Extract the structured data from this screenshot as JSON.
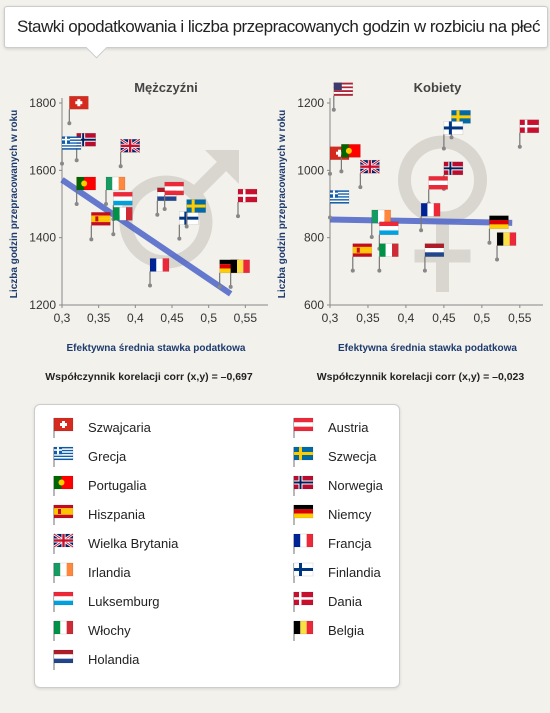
{
  "title": "Stawki opodatkowania i liczba przepracowanych godzin w rozbiciu na płeć",
  "colors": {
    "trend_line": "#4a63c8",
    "pin": "#777777",
    "gender_symbol": "#d9d6d0"
  },
  "chart_data": [
    {
      "type": "scatter",
      "title": "Mężczyźni",
      "xlabel": "Efektywna średnia stawka podatkowa",
      "ylabel": "Liczba godzin przepracowanych w roku",
      "xlim": [
        0.3,
        0.57
      ],
      "ylim": [
        1200,
        1800
      ],
      "xticks": [
        "0,3",
        "0,35",
        "0,4",
        "0,45",
        "0,5",
        "0,55"
      ],
      "yticks": [
        "1200",
        "1400",
        "1600",
        "1800"
      ],
      "correlation_text": "Współczynnik korelacji corr (x,y) = –0,697",
      "trend": [
        [
          0.3,
          1572
        ],
        [
          0.53,
          1233
        ]
      ],
      "points": [
        {
          "country": "Szwajcaria",
          "flag": "ch",
          "x": 0.31,
          "y": 1740
        },
        {
          "country": "Wielka Brytania",
          "flag": "gb",
          "x": 0.38,
          "y": 1612
        },
        {
          "country": "Norwegia",
          "flag": "no",
          "x": 0.32,
          "y": 1630
        },
        {
          "country": "Grecja",
          "flag": "gr",
          "x": 0.3,
          "y": 1620
        },
        {
          "country": "Portugalia",
          "flag": "pt",
          "x": 0.32,
          "y": 1500
        },
        {
          "country": "Irlandia",
          "flag": "ie",
          "x": 0.36,
          "y": 1500
        },
        {
          "country": "Hiszpania",
          "flag": "es",
          "x": 0.34,
          "y": 1395
        },
        {
          "country": "Luksemburg",
          "flag": "lu",
          "x": 0.37,
          "y": 1455
        },
        {
          "country": "Włochy",
          "flag": "it",
          "x": 0.37,
          "y": 1410
        },
        {
          "country": "Holandia",
          "flag": "nl",
          "x": 0.43,
          "y": 1468
        },
        {
          "country": "Austria",
          "flag": "at",
          "x": 0.44,
          "y": 1485
        },
        {
          "country": "Francja",
          "flag": "fr",
          "x": 0.42,
          "y": 1258
        },
        {
          "country": "Finlandia",
          "flag": "fi",
          "x": 0.46,
          "y": 1397
        },
        {
          "country": "Szwecja",
          "flag": "se",
          "x": 0.47,
          "y": 1433
        },
        {
          "country": "Dania",
          "flag": "dk",
          "x": 0.54,
          "y": 1464
        },
        {
          "country": "Niemcy",
          "flag": "de",
          "x": 0.515,
          "y": 1254
        },
        {
          "country": "Belgia",
          "flag": "be",
          "x": 0.53,
          "y": 1254
        }
      ]
    },
    {
      "type": "scatter",
      "title": "Kobiety",
      "xlabel": "Efektywna średnia stawka podatkowa",
      "ylabel": "Liczba godzin przepracowanych w roku",
      "xlim": [
        0.3,
        0.57
      ],
      "ylim": [
        600,
        1200
      ],
      "xticks": [
        "0,3",
        "0,35",
        "0,4",
        "0,45",
        "0,5",
        "0,55"
      ],
      "yticks": [
        "600",
        "800",
        "1000",
        "1200"
      ],
      "correlation_text": "Współczynnik korelacji corr (x,y) = –0,023",
      "trend": [
        [
          0.3,
          854
        ],
        [
          0.54,
          844
        ]
      ],
      "points": [
        {
          "country": "USA",
          "flag": "us",
          "x": 0.305,
          "y": 1180
        },
        {
          "country": "Szwecja",
          "flag": "se",
          "x": 0.46,
          "y": 1098
        },
        {
          "country": "Finlandia",
          "flag": "fi",
          "x": 0.45,
          "y": 1065
        },
        {
          "country": "Dania",
          "flag": "dk",
          "x": 0.55,
          "y": 1070
        },
        {
          "country": "Szwajcaria",
          "flag": "ch",
          "x": 0.3,
          "y": 990
        },
        {
          "country": "Portugalia",
          "flag": "pt",
          "x": 0.315,
          "y": 997
        },
        {
          "country": "Wielka Brytania",
          "flag": "gb",
          "x": 0.34,
          "y": 950
        },
        {
          "country": "Norwegia",
          "flag": "no",
          "x": 0.45,
          "y": 945
        },
        {
          "country": "Austria",
          "flag": "at",
          "x": 0.43,
          "y": 902
        },
        {
          "country": "Grecja",
          "flag": "gr",
          "x": 0.3,
          "y": 860
        },
        {
          "country": "Irlandia",
          "flag": "ie",
          "x": 0.355,
          "y": 802
        },
        {
          "country": "Francja",
          "flag": "fr",
          "x": 0.42,
          "y": 822
        },
        {
          "country": "Luksemburg",
          "flag": "lu",
          "x": 0.365,
          "y": 767
        },
        {
          "country": "Hiszpania",
          "flag": "es",
          "x": 0.33,
          "y": 702
        },
        {
          "country": "Włochy",
          "flag": "it",
          "x": 0.365,
          "y": 702
        },
        {
          "country": "Holandia",
          "flag": "nl",
          "x": 0.425,
          "y": 702
        },
        {
          "country": "Niemcy",
          "flag": "de",
          "x": 0.51,
          "y": 785
        },
        {
          "country": "Belgia",
          "flag": "be",
          "x": 0.52,
          "y": 735
        }
      ]
    }
  ],
  "legend": {
    "left": [
      {
        "flag": "ch",
        "label": "Szwajcaria"
      },
      {
        "flag": "gr",
        "label": "Grecja"
      },
      {
        "flag": "pt",
        "label": "Portugalia"
      },
      {
        "flag": "es",
        "label": "Hiszpania"
      },
      {
        "flag": "gb",
        "label": "Wielka Brytania"
      },
      {
        "flag": "ie",
        "label": "Irlandia"
      },
      {
        "flag": "lu",
        "label": "Luksemburg"
      },
      {
        "flag": "it",
        "label": "Włochy"
      },
      {
        "flag": "nl",
        "label": "Holandia"
      }
    ],
    "right": [
      {
        "flag": "at",
        "label": "Austria"
      },
      {
        "flag": "se",
        "label": "Szwecja"
      },
      {
        "flag": "no",
        "label": "Norwegia"
      },
      {
        "flag": "de",
        "label": "Niemcy"
      },
      {
        "flag": "fr",
        "label": "Francja"
      },
      {
        "flag": "fi",
        "label": "Finlandia"
      },
      {
        "flag": "dk",
        "label": "Dania"
      },
      {
        "flag": "be",
        "label": "Belgia"
      }
    ]
  }
}
